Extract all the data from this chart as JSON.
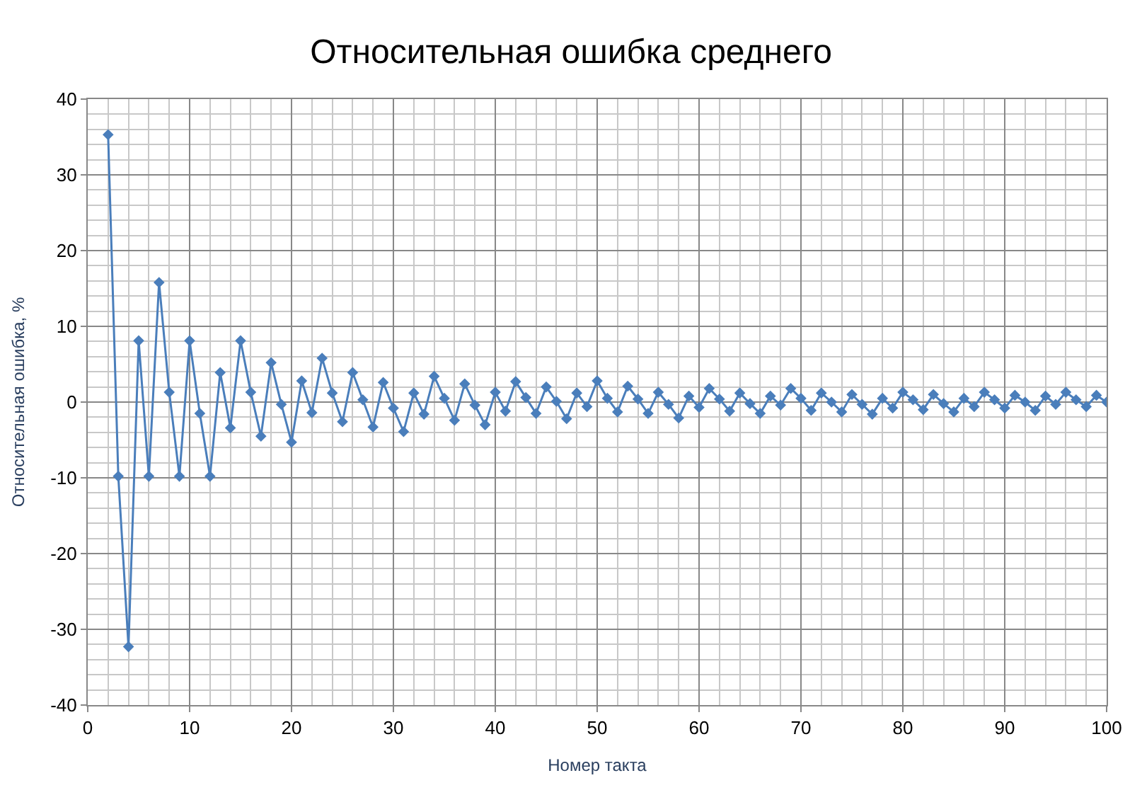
{
  "chart_data": {
    "type": "line",
    "title": "Относительная ошибка среднего",
    "xlabel": "Номер такта",
    "ylabel": "Относительная ошибка, %",
    "x": [
      2,
      3,
      4,
      5,
      6,
      7,
      8,
      9,
      10,
      11,
      12,
      13,
      14,
      15,
      16,
      17,
      18,
      19,
      20,
      21,
      22,
      23,
      24,
      25,
      26,
      27,
      28,
      29,
      30,
      31,
      32,
      33,
      34,
      35,
      36,
      37,
      38,
      39,
      40,
      41,
      42,
      43,
      44,
      45,
      46,
      47,
      48,
      49,
      50,
      51,
      52,
      53,
      54,
      55,
      56,
      57,
      58,
      59,
      60,
      61,
      62,
      63,
      64,
      65,
      66,
      67,
      68,
      69,
      70,
      71,
      72,
      73,
      74,
      75,
      76,
      77,
      78,
      79,
      80,
      81,
      82,
      83,
      84,
      85,
      86,
      87,
      88,
      89,
      90,
      91,
      92,
      93,
      94,
      95,
      96,
      97,
      98,
      99,
      100
    ],
    "series": [
      {
        "color": "#4a7ebb",
        "values": [
          35.3,
          -9.8,
          -32.3,
          8.1,
          -9.8,
          15.8,
          1.3,
          -9.8,
          8.1,
          -1.5,
          -9.8,
          3.9,
          -3.4,
          8.1,
          1.3,
          -4.5,
          5.2,
          -0.3,
          -5.3,
          2.8,
          -1.4,
          5.8,
          1.2,
          -2.6,
          3.9,
          0.3,
          -3.3,
          2.6,
          -0.8,
          -3.9,
          1.2,
          -1.6,
          3.4,
          0.5,
          -2.4,
          2.4,
          -0.4,
          -3.0,
          1.3,
          -1.2,
          2.7,
          0.6,
          -1.5,
          2.0,
          0.1,
          -2.2,
          1.2,
          -0.6,
          2.8,
          0.5,
          -1.3,
          2.1,
          0.4,
          -1.5,
          1.3,
          -0.3,
          -2.1,
          0.8,
          -0.7,
          1.8,
          0.4,
          -1.2,
          1.2,
          -0.2,
          -1.5,
          0.8,
          -0.4,
          1.8,
          0.5,
          -1.1,
          1.2,
          0.0,
          -1.3,
          1.0,
          -0.3,
          -1.6,
          0.5,
          -0.8,
          1.3,
          0.3,
          -1.0,
          1.0,
          -0.2,
          -1.3,
          0.5,
          -0.6,
          1.3,
          0.3,
          -0.8,
          0.9,
          0.0,
          -1.1,
          0.8,
          -0.3,
          1.3,
          0.3,
          -0.6,
          0.9,
          0.0
        ]
      }
    ],
    "xlim": [
      0,
      100
    ],
    "xticks": [
      0,
      10,
      20,
      30,
      40,
      50,
      60,
      70,
      80,
      90,
      100
    ],
    "ylim": [
      -40,
      40
    ],
    "yticks": [
      -40,
      -30,
      -20,
      -10,
      0,
      10,
      20,
      30,
      40
    ],
    "grid": true,
    "marker": "diamond",
    "line_style": "solid"
  }
}
